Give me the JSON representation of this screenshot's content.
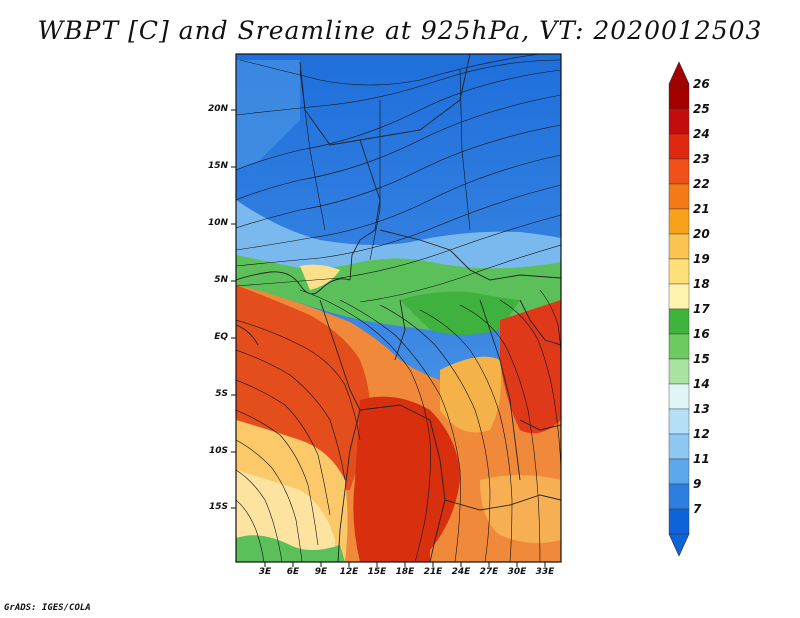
{
  "title": "WBPT [C] and Sreamline at 925hPa, VT: 2020012503",
  "footer": "GrADS: IGES/COLA",
  "lat_labels": [
    "20N",
    "15N",
    "10N",
    "5N",
    "EQ",
    "5S",
    "10S",
    "15S"
  ],
  "lon_labels": [
    "3E",
    "6E",
    "9E",
    "12E",
    "15E",
    "18E",
    "21E",
    "24E",
    "27E",
    "30E",
    "33E"
  ],
  "colorbar": {
    "labels": [
      "26",
      "25",
      "24",
      "23",
      "22",
      "21",
      "20",
      "19",
      "18",
      "17",
      "16",
      "15",
      "14",
      "13",
      "12",
      "11",
      "9",
      "7"
    ],
    "colors": [
      "#a50000",
      "#c30d0d",
      "#e02710",
      "#f0501a",
      "#f47a18",
      "#f8a21c",
      "#fbc351",
      "#fde07a",
      "#fff3b0",
      "#3db53d",
      "#6ccb5f",
      "#a9e3a2",
      "#e0f5f6",
      "#b4e0f7",
      "#8cc8f2",
      "#5da8ea",
      "#2c7fe0",
      "#0f63d8"
    ]
  },
  "map": {
    "regions": [
      {
        "name": "north-cold",
        "color": "#2f7fde"
      },
      {
        "name": "sahel-blue",
        "color": "#5da8ea"
      },
      {
        "name": "transition-green",
        "color": "#6ccb5f"
      },
      {
        "name": "equatorial-warm",
        "color": "#e85a1e"
      },
      {
        "name": "congo-hot",
        "color": "#d8300f"
      },
      {
        "name": "east-orange",
        "color": "#f39a2a"
      },
      {
        "name": "south-yellow",
        "color": "#fbe08a"
      }
    ]
  }
}
